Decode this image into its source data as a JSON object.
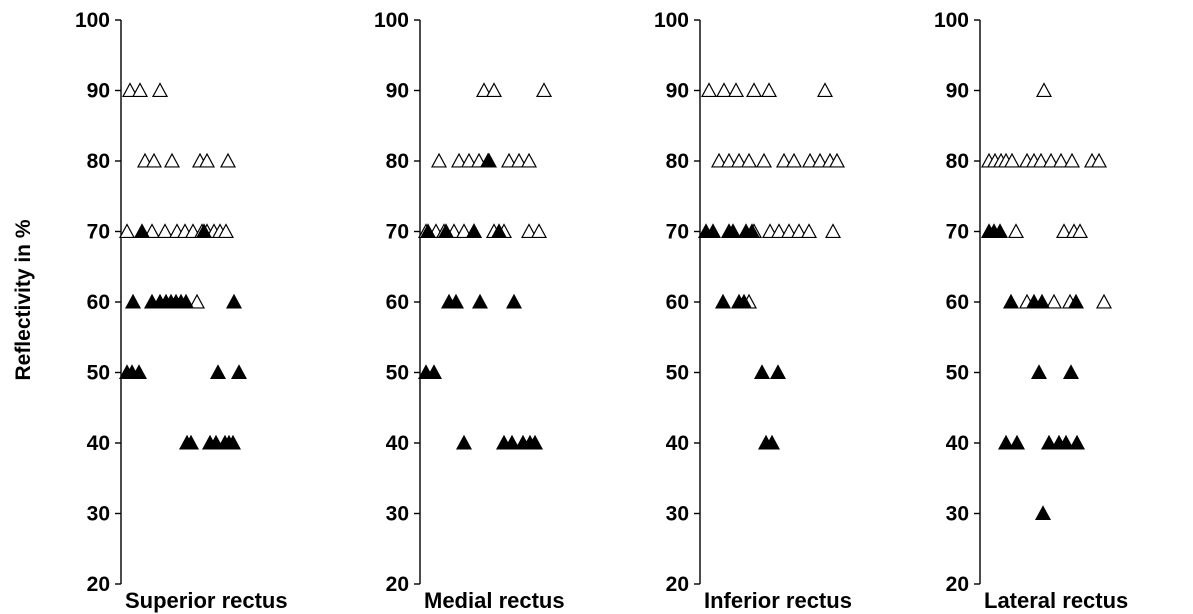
{
  "chart_data": {
    "type": "scatter",
    "ylabel": "Reflectivity in %",
    "ylim": [
      20,
      100
    ],
    "yticks": [
      "100",
      "90",
      "80",
      "70",
      "60",
      "50",
      "40",
      "30",
      "20"
    ],
    "grid": false,
    "marker_colors": {
      "open": "#ffffff",
      "filled": "#000000",
      "outline": "#000000"
    },
    "panels": [
      {
        "title": "Superior rectus",
        "points": {
          "open": [
            [
              3,
              90
            ],
            [
              13,
              90
            ],
            [
              33,
              90
            ],
            [
              18,
              80
            ],
            [
              27,
              80
            ],
            [
              45,
              80
            ],
            [
              73,
              80
            ],
            [
              80,
              80
            ],
            [
              101,
              80
            ],
            [
              0,
              70
            ],
            [
              25,
              70
            ],
            [
              38,
              70
            ],
            [
              50,
              70
            ],
            [
              58,
              70
            ],
            [
              66,
              70
            ],
            [
              75,
              70
            ],
            [
              80,
              70
            ],
            [
              87,
              70
            ],
            [
              93,
              70
            ],
            [
              99,
              70
            ],
            [
              70,
              60
            ]
          ],
          "filled": [
            [
              15,
              70
            ],
            [
              77,
              70
            ],
            [
              6,
              60
            ],
            [
              25,
              60
            ],
            [
              33,
              60
            ],
            [
              39,
              60
            ],
            [
              44,
              60
            ],
            [
              49,
              60
            ],
            [
              54,
              60
            ],
            [
              59,
              60
            ],
            [
              107,
              60
            ],
            [
              0,
              50
            ],
            [
              5,
              50
            ],
            [
              12,
              50
            ],
            [
              91,
              50
            ],
            [
              112,
              50
            ],
            [
              60,
              40
            ],
            [
              64,
              40
            ],
            [
              83,
              40
            ],
            [
              89,
              40
            ],
            [
              98,
              40
            ],
            [
              102,
              40
            ],
            [
              106,
              40
            ]
          ]
        }
      },
      {
        "title": "Medial rectus",
        "points": {
          "open": [
            [
              58,
              90
            ],
            [
              68,
              90
            ],
            [
              118,
              90
            ],
            [
              13,
              80
            ],
            [
              33,
              80
            ],
            [
              43,
              80
            ],
            [
              53,
              80
            ],
            [
              63,
              80
            ],
            [
              83,
              80
            ],
            [
              93,
              80
            ],
            [
              103,
              80
            ],
            [
              0,
              70
            ],
            [
              10,
              70
            ],
            [
              18,
              70
            ],
            [
              28,
              70
            ],
            [
              38,
              70
            ],
            [
              48,
              70
            ],
            [
              68,
              70
            ],
            [
              78,
              70
            ],
            [
              103,
              70
            ],
            [
              113,
              70
            ]
          ],
          "filled": [
            [
              62,
              80
            ],
            [
              2,
              70
            ],
            [
              20,
              70
            ],
            [
              48,
              70
            ],
            [
              73,
              70
            ],
            [
              23,
              60
            ],
            [
              30,
              60
            ],
            [
              54,
              60
            ],
            [
              88,
              60
            ],
            [
              0,
              50
            ],
            [
              8,
              50
            ],
            [
              38,
              40
            ],
            [
              78,
              40
            ],
            [
              86,
              40
            ],
            [
              97,
              40
            ],
            [
              104,
              40
            ],
            [
              109,
              40
            ]
          ]
        }
      },
      {
        "title": "Inferior rectus",
        "points": {
          "open": [
            [
              3,
              90
            ],
            [
              18,
              90
            ],
            [
              30,
              90
            ],
            [
              48,
              90
            ],
            [
              63,
              90
            ],
            [
              119,
              90
            ],
            [
              13,
              80
            ],
            [
              23,
              80
            ],
            [
              33,
              80
            ],
            [
              43,
              80
            ],
            [
              58,
              80
            ],
            [
              78,
              80
            ],
            [
              88,
              80
            ],
            [
              104,
              80
            ],
            [
              114,
              80
            ],
            [
              124,
              80
            ],
            [
              131,
              80
            ],
            [
              48,
              70
            ],
            [
              64,
              70
            ],
            [
              73,
              70
            ],
            [
              83,
              70
            ],
            [
              93,
              70
            ],
            [
              103,
              70
            ],
            [
              127,
              70
            ],
            [
              43,
              60
            ]
          ],
          "filled": [
            [
              0,
              70
            ],
            [
              7,
              70
            ],
            [
              23,
              70
            ],
            [
              27,
              70
            ],
            [
              40,
              70
            ],
            [
              46,
              70
            ],
            [
              17,
              60
            ],
            [
              33,
              60
            ],
            [
              38,
              60
            ],
            [
              56,
              50
            ],
            [
              72,
              50
            ],
            [
              60,
              40
            ],
            [
              66,
              40
            ]
          ]
        }
      },
      {
        "title": "Lateral rectus",
        "points": {
          "open": [
            [
              58,
              90
            ],
            [
              3,
              80
            ],
            [
              9,
              80
            ],
            [
              15,
              80
            ],
            [
              20,
              80
            ],
            [
              26,
              80
            ],
            [
              41,
              80
            ],
            [
              48,
              80
            ],
            [
              55,
              80
            ],
            [
              65,
              80
            ],
            [
              75,
              80
            ],
            [
              86,
              80
            ],
            [
              106,
              80
            ],
            [
              113,
              80
            ],
            [
              30,
              70
            ],
            [
              78,
              70
            ],
            [
              88,
              70
            ],
            [
              94,
              70
            ],
            [
              41,
              60
            ],
            [
              68,
              60
            ],
            [
              84,
              60
            ],
            [
              118,
              60
            ]
          ],
          "filled": [
            [
              3,
              70
            ],
            [
              8,
              70
            ],
            [
              14,
              70
            ],
            [
              25,
              60
            ],
            [
              48,
              60
            ],
            [
              56,
              60
            ],
            [
              90,
              60
            ],
            [
              53,
              50
            ],
            [
              85,
              50
            ],
            [
              20,
              40
            ],
            [
              31,
              40
            ],
            [
              63,
              40
            ],
            [
              73,
              40
            ],
            [
              80,
              40
            ],
            [
              91,
              40
            ],
            [
              57,
              30
            ]
          ]
        }
      }
    ]
  }
}
